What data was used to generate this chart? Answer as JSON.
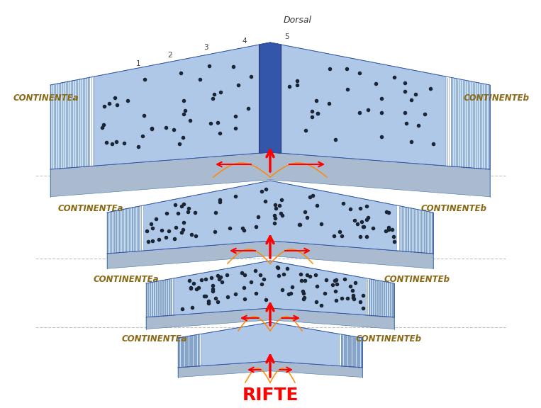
{
  "background_color": "#ffffff",
  "label_color_continent": "#8B6914",
  "label_color_rifte": "#FF0000",
  "plate_ocean_blue": "#b0c8e8",
  "plate_continent_blue": "#c8dff0",
  "plate_dark_blue": "#3355aa",
  "plate_side_blue": "#8aaac8",
  "plate_bottom_blue": "#aabbd0",
  "arrow_red": "#FF0000",
  "arrow_orange": "#FF8800",
  "rifte_label": "RIFTE",
  "dorsal_label": "Dorsal",
  "numbers": [
    "1",
    "2",
    "3",
    "4",
    "5"
  ],
  "stages": [
    {
      "label_left": "CONTINENTEa",
      "label_right": "CONTINENTEb"
    },
    {
      "label_left": "CONTINENTEa",
      "label_right": "CONTINENTEb"
    },
    {
      "label_left": "CONTINENTEa",
      "label_right": "CONTINENTEb"
    },
    {
      "label_left": "CONTINENTEa",
      "label_right": "CONTINENTEb"
    }
  ]
}
